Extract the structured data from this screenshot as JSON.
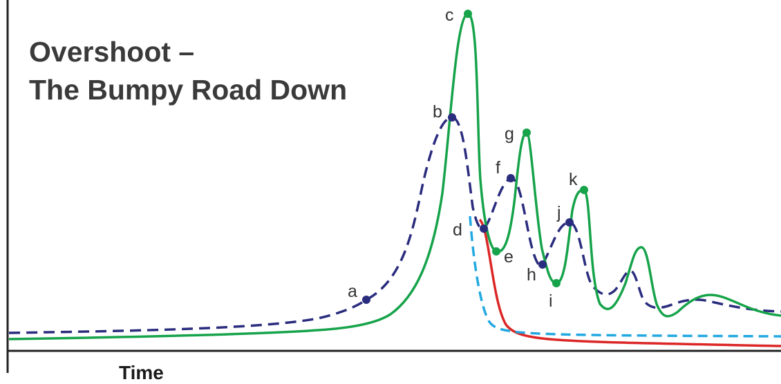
{
  "chart_data": {
    "type": "line",
    "title_line1": "Overshoot –",
    "title_line2": "The Bumpy Road Down",
    "xlabel": "Time",
    "ylabel": "",
    "colors": {
      "dashed_navy": "#2a2c7e",
      "green": "#16a34a",
      "red": "#dc2626",
      "dashed_cyan": "#22a8e0",
      "axis": "#222222"
    },
    "series": [
      {
        "style": "dashed",
        "color": "#2a2c7e",
        "points": [
          [
            0,
            0.09
          ],
          [
            20,
            0.11
          ],
          [
            40,
            0.16
          ],
          [
            48,
            0.22
          ],
          [
            52,
            0.3
          ],
          [
            55,
            0.5
          ],
          [
            57,
            0.8
          ],
          [
            58,
            0.86
          ],
          [
            59,
            0.8
          ],
          [
            61,
            0.5
          ],
          [
            62,
            0.44
          ],
          [
            64,
            0.6
          ],
          [
            66,
            0.66
          ],
          [
            67,
            0.6
          ],
          [
            69,
            0.38
          ],
          [
            70,
            0.34
          ],
          [
            71,
            0.38
          ],
          [
            73,
            0.48
          ],
          [
            74,
            0.5
          ],
          [
            75,
            0.42
          ],
          [
            77,
            0.3
          ],
          [
            80,
            0.26
          ],
          [
            82,
            0.32
          ],
          [
            83,
            0.28
          ],
          [
            86,
            0.22
          ],
          [
            90,
            0.18
          ],
          [
            100,
            0.14
          ]
        ]
      },
      {
        "style": "solid",
        "color": "#16a34a",
        "points": [
          [
            0,
            0.06
          ],
          [
            30,
            0.08
          ],
          [
            45,
            0.12
          ],
          [
            50,
            0.18
          ],
          [
            54,
            0.3
          ],
          [
            57,
            0.55
          ],
          [
            59,
            1.0
          ],
          [
            60,
            1.0
          ],
          [
            61,
            0.6
          ],
          [
            62,
            0.45
          ],
          [
            64,
            0.39
          ],
          [
            66,
            0.55
          ],
          [
            67,
            0.8
          ],
          [
            68,
            0.77
          ],
          [
            70,
            0.4
          ],
          [
            71,
            0.32
          ],
          [
            72,
            0.28
          ],
          [
            73,
            0.46
          ],
          [
            74,
            0.64
          ],
          [
            75,
            0.64
          ],
          [
            77,
            0.38
          ],
          [
            80,
            0.26
          ],
          [
            82,
            0.36
          ],
          [
            83,
            0.24
          ],
          [
            86,
            0.18
          ],
          [
            89,
            0.22
          ],
          [
            92,
            0.2
          ],
          [
            100,
            0.16
          ]
        ]
      },
      {
        "style": "solid",
        "color": "#dc2626",
        "points": [
          [
            61,
            0.44
          ],
          [
            63,
            0.2
          ],
          [
            65,
            0.08
          ],
          [
            70,
            0.05
          ],
          [
            100,
            0.03
          ]
        ]
      },
      {
        "style": "dashed",
        "color": "#22a8e0",
        "points": [
          [
            60,
            0.45
          ],
          [
            61,
            0.28
          ],
          [
            62,
            0.12
          ],
          [
            64,
            0.07
          ],
          [
            100,
            0.06
          ]
        ]
      }
    ],
    "annotations": [
      {
        "label": "a",
        "x": 47,
        "y": 0.22,
        "on": "dashed_navy"
      },
      {
        "label": "b",
        "x": 58,
        "y": 0.86,
        "on": "dashed_navy"
      },
      {
        "label": "c",
        "x": 60,
        "y": 1.0,
        "on": "green"
      },
      {
        "label": "d",
        "x": 62,
        "y": 0.44,
        "on": "dashed_navy"
      },
      {
        "label": "e",
        "x": 64,
        "y": 0.39,
        "on": "green"
      },
      {
        "label": "f",
        "x": 66,
        "y": 0.66,
        "on": "dashed_navy"
      },
      {
        "label": "g",
        "x": 67,
        "y": 0.8,
        "on": "green"
      },
      {
        "label": "h",
        "x": 70,
        "y": 0.34,
        "on": "dashed_navy"
      },
      {
        "label": "i",
        "x": 71,
        "y": 0.28,
        "on": "green"
      },
      {
        "label": "j",
        "x": 73,
        "y": 0.5,
        "on": "dashed_navy"
      },
      {
        "label": "k",
        "x": 75,
        "y": 0.64,
        "on": "green"
      }
    ],
    "grid": false,
    "legend": "none"
  }
}
